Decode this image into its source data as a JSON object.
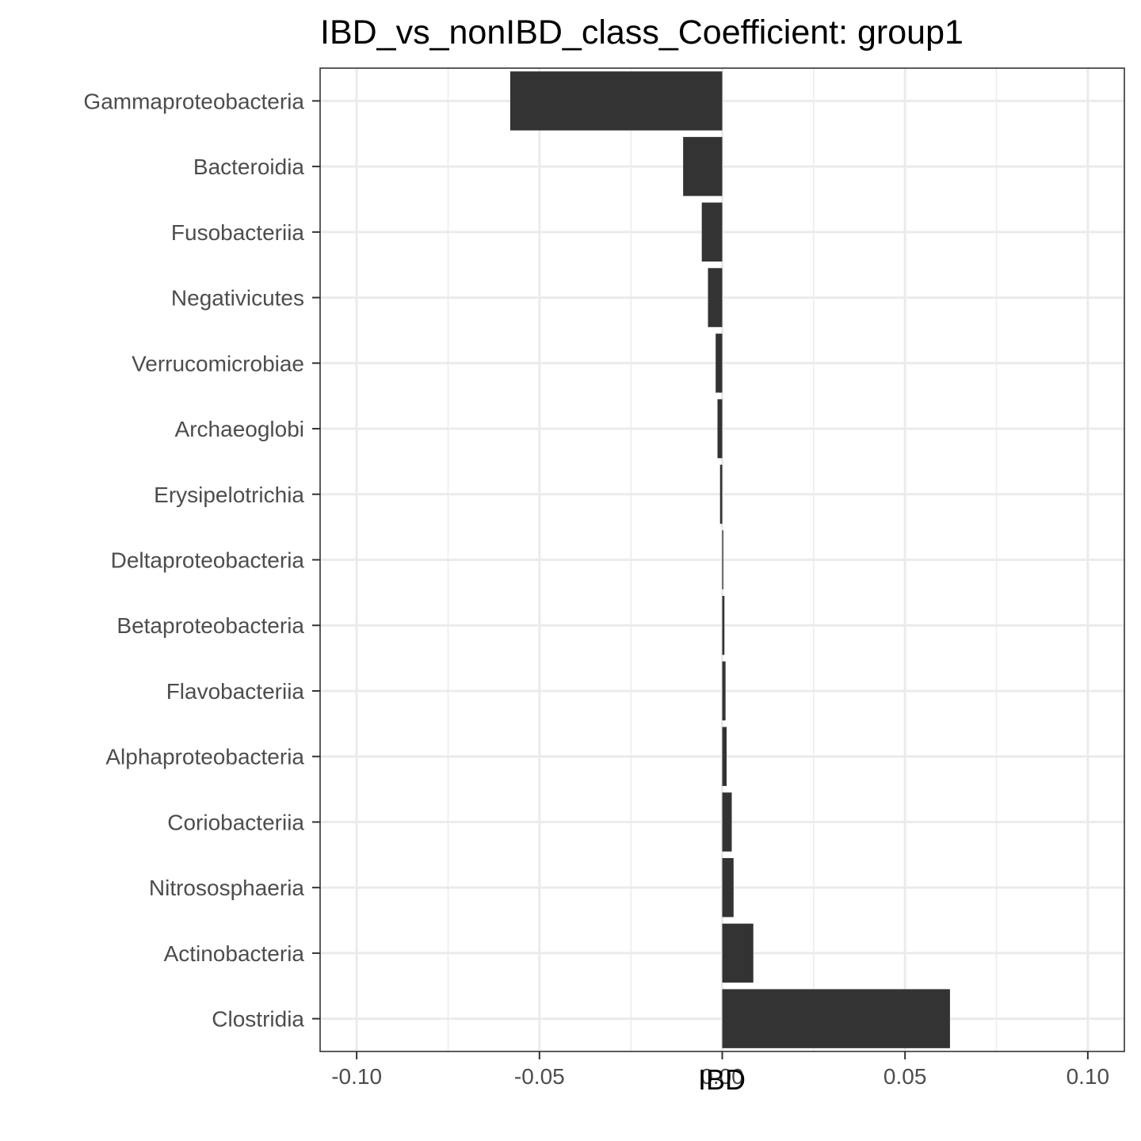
{
  "chart_data": {
    "type": "bar",
    "orientation": "horizontal",
    "title": "IBD_vs_nonIBD_class_Coefficient: group1",
    "xlabel": "IBD",
    "ylabel": "",
    "xlim": [
      -0.11,
      0.11
    ],
    "xticks": [
      -0.1,
      -0.05,
      0.0,
      0.05,
      0.1
    ],
    "xtick_labels": [
      "-0.10",
      "-0.05",
      "0.00",
      "0.05",
      "0.10"
    ],
    "grid": true,
    "bar_color": "#333333",
    "categories": [
      "Gammaproteobacteria",
      "Bacteroidia",
      "Fusobacteriia",
      "Negativicutes",
      "Verrucomicrobiae",
      "Archaeoglobi",
      "Erysipelotrichia",
      "Deltaproteobacteria",
      "Betaproteobacteria",
      "Flavobacteriia",
      "Alphaproteobacteria",
      "Coriobacteriia",
      "Nitrososphaeria",
      "Actinobacteria",
      "Clostridia"
    ],
    "values": [
      -0.058,
      -0.0107,
      -0.0056,
      -0.0039,
      -0.0018,
      -0.0013,
      -0.0006,
      0.0003,
      0.0006,
      0.0009,
      0.0012,
      0.0026,
      0.0031,
      0.0085,
      0.0623
    ]
  }
}
